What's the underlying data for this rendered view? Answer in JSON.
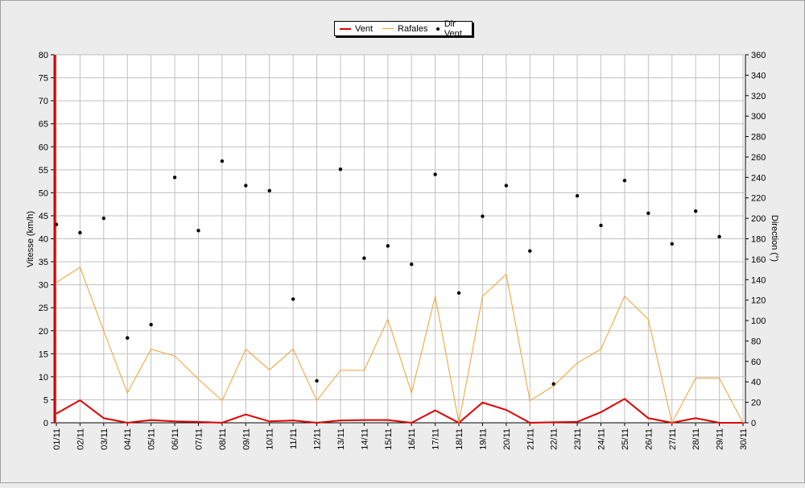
{
  "chart_data": {
    "type": "line",
    "ylabel": "Vitesse (km/h)",
    "y2label": "Direction (°)",
    "ylim": [
      0,
      80
    ],
    "y2lim": [
      0,
      360
    ],
    "yticks": [
      0,
      5,
      10,
      15,
      20,
      25,
      30,
      35,
      40,
      45,
      50,
      55,
      60,
      65,
      70,
      75,
      80
    ],
    "y2ticks": [
      0,
      20,
      40,
      60,
      80,
      100,
      120,
      140,
      160,
      180,
      200,
      220,
      240,
      260,
      280,
      300,
      320,
      340,
      360
    ],
    "categories": [
      "01/11",
      "02/11",
      "03/11",
      "04/11",
      "05/11",
      "06/11",
      "07/11",
      "08/11",
      "09/11",
      "10/11",
      "11/11",
      "12/11",
      "13/11",
      "14/11",
      "15/11",
      "16/11",
      "17/11",
      "18/11",
      "19/11",
      "20/11",
      "21/11",
      "22/11",
      "23/11",
      "24/11",
      "25/11",
      "26/11",
      "27/11",
      "28/11",
      "29/11",
      "30/11"
    ],
    "grid": true,
    "legend_position": "top-center",
    "series": [
      {
        "name": "Vent",
        "color": "#dd0000",
        "axis": "left",
        "kind": "line",
        "values": [
          2,
          4.9,
          1,
          0,
          0.6,
          0.3,
          0.2,
          0,
          1.8,
          0.3,
          0.5,
          0,
          0.5,
          0.6,
          0.6,
          0,
          2.7,
          0,
          4.4,
          2.8,
          0,
          0.1,
          0.2,
          2.3,
          5.2,
          1,
          0,
          1,
          0,
          0
        ]
      },
      {
        "name": "Rafales",
        "color": "#f0a030",
        "axis": "left",
        "kind": "line",
        "values": [
          30.5,
          33.8,
          20,
          6.5,
          16,
          14.5,
          9.5,
          4.8,
          16,
          11.5,
          16,
          4.8,
          11.4,
          11.4,
          22.5,
          6.5,
          27.5,
          0,
          27.5,
          32.3,
          4.8,
          8,
          13,
          16,
          27.5,
          22.5,
          0,
          9.7,
          9.7,
          0
        ]
      },
      {
        "name": "Dir Vent",
        "color": "#000000",
        "axis": "right",
        "kind": "scatter",
        "x": [
          "01/11",
          "02/11",
          "03/11",
          "04/11",
          "05/11",
          "06/11",
          "07/11",
          "08/11",
          "09/11",
          "10/11",
          "11/11",
          "12/11",
          "13/11",
          "14/11",
          "15/11",
          "16/11",
          "17/11",
          "18/11",
          "19/11",
          "20/11",
          "21/11",
          "22/11",
          "23/11",
          "24/11",
          "25/11",
          "26/11",
          "27/11",
          "28/11",
          "29/11"
        ],
        "values": [
          194,
          186,
          200,
          83,
          96,
          240,
          188,
          256,
          232,
          227,
          121,
          41,
          248,
          161,
          173,
          155,
          243,
          127,
          202,
          232,
          168,
          38,
          222,
          193,
          237,
          205,
          175,
          207,
          182
        ]
      }
    ]
  },
  "legend": {
    "items": [
      {
        "label": "Vent"
      },
      {
        "label": "Rafales"
      },
      {
        "label": "Dir Vent"
      }
    ]
  }
}
